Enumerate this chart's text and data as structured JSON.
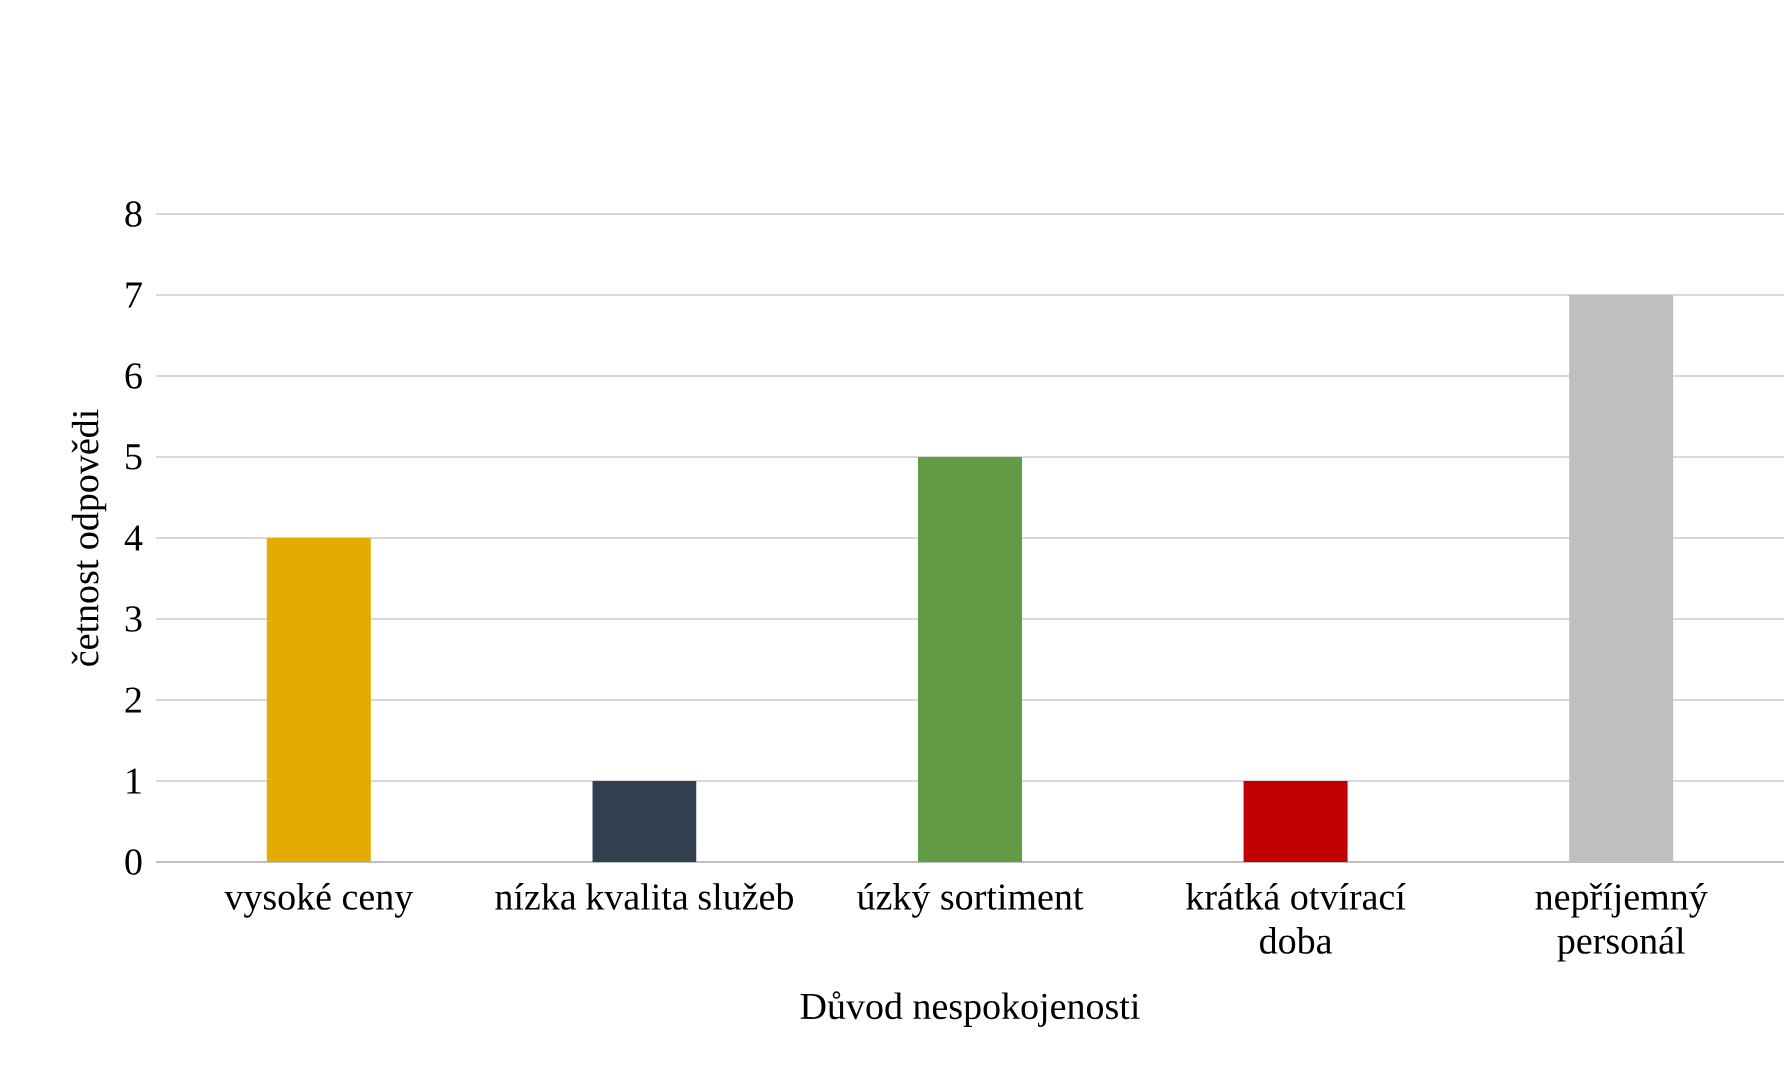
{
  "chart_data": {
    "type": "bar",
    "categories": [
      "vysoké ceny",
      "nízka kvalita služeb",
      "úzký sortiment",
      "krátká otvírací doba",
      "nepříjemný personál"
    ],
    "values": [
      4,
      1,
      5,
      1,
      7
    ],
    "colors": [
      "#e3ac00",
      "#323f4f",
      "#629c44",
      "#c00000",
      "#bfbfbf"
    ],
    "xlabel": "Důvod nespokojenosti",
    "ylabel": "četnost odpovědi",
    "ylim": [
      0,
      8
    ],
    "yticks": [
      0,
      1,
      2,
      3,
      4,
      5,
      6,
      7,
      8
    ],
    "grid": "y"
  }
}
